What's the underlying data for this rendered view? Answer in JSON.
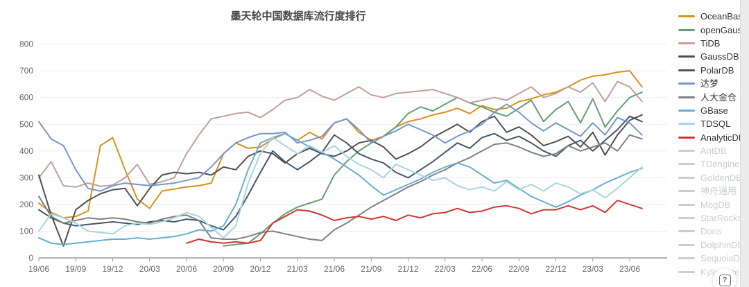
{
  "chart_data": {
    "type": "line",
    "title": "墨天轮中国数据库流行度排行",
    "xlabel": "",
    "ylabel": "",
    "ylim": [
      0,
      800
    ],
    "y_ticks": [
      0,
      100,
      200,
      300,
      400,
      500,
      600,
      700,
      800
    ],
    "grid": true,
    "legend_position": "right",
    "x": [
      "19/06",
      "19/07",
      "19/08",
      "19/09",
      "19/10",
      "19/11",
      "19/12",
      "20/01",
      "20/02",
      "20/03",
      "20/04",
      "20/05",
      "20/06",
      "20/07",
      "20/08",
      "20/09",
      "20/10",
      "20/11",
      "20/12",
      "21/01",
      "21/02",
      "21/03",
      "21/04",
      "21/05",
      "21/06",
      "21/07",
      "21/08",
      "21/09",
      "21/10",
      "21/11",
      "21/12",
      "22/01",
      "22/02",
      "22/03",
      "22/04",
      "22/05",
      "22/06",
      "22/07",
      "22/08",
      "22/09",
      "22/10",
      "22/11",
      "22/12",
      "23/01",
      "23/02",
      "23/03",
      "23/04",
      "23/05",
      "23/06",
      "23/07"
    ],
    "x_tick_labels": [
      "19/06",
      "19/09",
      "19/12",
      "20/03",
      "20/06",
      "20/09",
      "20/12",
      "21/03",
      "21/06",
      "21/09",
      "21/12",
      "22/03",
      "22/06",
      "22/09",
      "22/12",
      "23/03",
      "23/06"
    ],
    "series": [
      {
        "name": "OceanBase",
        "color": "#d9901a",
        "start_index": 0,
        "values": [
          205,
          170,
          150,
          155,
          175,
          420,
          450,
          330,
          220,
          185,
          250,
          258,
          265,
          270,
          280,
          390,
          430,
          410,
          415,
          445,
          465,
          440,
          470,
          445,
          505,
          520,
          470,
          440,
          455,
          490,
          510,
          520,
          535,
          545,
          560,
          540,
          570,
          555,
          560,
          585,
          595,
          610,
          620,
          640,
          665,
          680,
          685,
          695,
          700,
          640
        ]
      },
      {
        "name": "openGauss",
        "color": "#629e73",
        "start_index": 15,
        "values": [
          45,
          50,
          55,
          90,
          130,
          165,
          190,
          205,
          220,
          310,
          360,
          400,
          430,
          455,
          490,
          540,
          565,
          550,
          575,
          600,
          580,
          565,
          545,
          530,
          560,
          590,
          510,
          555,
          585,
          505,
          595,
          490,
          550,
          600,
          620
        ]
      },
      {
        "name": "TiDB",
        "color": "#c0a098",
        "start_index": 0,
        "values": [
          300,
          360,
          270,
          265,
          280,
          268,
          272,
          300,
          350,
          275,
          285,
          300,
          390,
          460,
          520,
          530,
          540,
          545,
          525,
          555,
          590,
          600,
          630,
          605,
          590,
          615,
          640,
          610,
          600,
          615,
          620,
          625,
          630,
          615,
          600,
          580,
          590,
          600,
          590,
          615,
          640,
          600,
          615,
          640,
          620,
          655,
          585,
          660,
          640,
          585
        ]
      },
      {
        "name": "GaussDB",
        "color": "#4f4f4f",
        "start_index": 0,
        "values": [
          310,
          160,
          45,
          180,
          215,
          240,
          255,
          260,
          195,
          260,
          310,
          320,
          315,
          320,
          310,
          340,
          330,
          380,
          400,
          390,
          355,
          390,
          410,
          390,
          380,
          400,
          430,
          440,
          415,
          370,
          390,
          415,
          450,
          475,
          500,
          470,
          510,
          530,
          470,
          490,
          460,
          420,
          435,
          455,
          415,
          470,
          385,
          460,
          515,
          535
        ]
      },
      {
        "name": "PolarDB",
        "color": "#43566c",
        "start_index": 0,
        "values": [
          180,
          150,
          130,
          120,
          125,
          130,
          135,
          130,
          125,
          135,
          140,
          135,
          145,
          140,
          120,
          105,
          155,
          235,
          320,
          400,
          360,
          330,
          360,
          395,
          460,
          430,
          390,
          370,
          355,
          320,
          300,
          330,
          360,
          395,
          430,
          410,
          450,
          465,
          440,
          455,
          430,
          400,
          380,
          420,
          440,
          400,
          440,
          480,
          530,
          510
        ]
      },
      {
        "name": "达梦",
        "color": "#7696cb",
        "start_index": 0,
        "values": [
          510,
          445,
          420,
          330,
          260,
          250,
          270,
          280,
          275,
          270,
          275,
          280,
          290,
          300,
          340,
          390,
          430,
          450,
          465,
          465,
          470,
          430,
          440,
          455,
          505,
          520,
          480,
          430,
          455,
          475,
          500,
          480,
          460,
          430,
          455,
          475,
          500,
          545,
          575,
          545,
          505,
          475,
          505,
          480,
          455,
          505,
          460,
          525,
          505,
          460
        ]
      },
      {
        "name": "人大金仓",
        "color": "#808080",
        "start_index": 0,
        "values": [
          230,
          155,
          130,
          140,
          150,
          145,
          150,
          145,
          135,
          130,
          145,
          155,
          160,
          140,
          75,
          70,
          70,
          80,
          95,
          100,
          90,
          80,
          70,
          65,
          105,
          130,
          160,
          190,
          215,
          240,
          265,
          285,
          310,
          330,
          355,
          375,
          400,
          425,
          430,
          415,
          395,
          380,
          390,
          420,
          400,
          415,
          430,
          400,
          460,
          445
        ]
      },
      {
        "name": "GBase",
        "color": "#68aed2",
        "start_index": 0,
        "values": [
          75,
          55,
          50,
          55,
          60,
          65,
          70,
          70,
          75,
          70,
          75,
          80,
          90,
          105,
          100,
          120,
          200,
          330,
          430,
          450,
          465,
          440,
          415,
          395,
          370,
          340,
          310,
          270,
          235,
          255,
          275,
          295,
          320,
          340,
          355,
          340,
          310,
          280,
          290,
          260,
          230,
          210,
          190,
          210,
          235,
          255,
          280,
          300,
          320,
          335
        ]
      },
      {
        "name": "TDSQL",
        "color": "#a6d6df",
        "start_index": 0,
        "values": [
          100,
          165,
          150,
          130,
          100,
          95,
          90,
          120,
          130,
          125,
          135,
          150,
          170,
          155,
          115,
          75,
          120,
          280,
          390,
          450,
          420,
          390,
          420,
          395,
          420,
          380,
          350,
          330,
          300,
          350,
          330,
          310,
          290,
          300,
          270,
          255,
          265,
          250,
          285,
          255,
          275,
          250,
          280,
          265,
          240,
          255,
          225,
          260,
          300,
          340
        ]
      },
      {
        "name": "AnalyticDB",
        "color": "#d5342e",
        "start_index": 12,
        "values": [
          55,
          70,
          60,
          55,
          60,
          55,
          65,
          130,
          155,
          180,
          175,
          160,
          140,
          150,
          155,
          145,
          155,
          140,
          160,
          150,
          165,
          170,
          185,
          170,
          175,
          190,
          195,
          185,
          165,
          180,
          180,
          195,
          180,
          195,
          170,
          215,
          200,
          185
        ]
      }
    ],
    "inactive_series": [
      "AntDB",
      "TDengine",
      "GoldenDB",
      "神舟通用",
      "MogDB",
      "StarRocks",
      "Doris",
      "DolphinDB",
      "SequoiaDB",
      "Kyligence"
    ],
    "inactive_color": "#c9ced4"
  },
  "legend": {
    "items": [
      {
        "label": "OceanBase",
        "color": "#d9901a",
        "active": true
      },
      {
        "label": "openGauss",
        "color": "#629e73",
        "active": true
      },
      {
        "label": "TiDB",
        "color": "#c0a098",
        "active": true
      },
      {
        "label": "GaussDB",
        "color": "#4f4f4f",
        "active": true
      },
      {
        "label": "PolarDB",
        "color": "#43566c",
        "active": true
      },
      {
        "label": "达梦",
        "color": "#7696cb",
        "active": true
      },
      {
        "label": "人大金仓",
        "color": "#808080",
        "active": true
      },
      {
        "label": "GBase",
        "color": "#68aed2",
        "active": true
      },
      {
        "label": "TDSQL",
        "color": "#a6d6df",
        "active": true
      },
      {
        "label": "AnalyticDB",
        "color": "#d5342e",
        "active": true
      },
      {
        "label": "AntDB",
        "color": "#c9ced4",
        "active": false
      },
      {
        "label": "TDengine",
        "color": "#c9ced4",
        "active": false
      },
      {
        "label": "GoldenDB",
        "color": "#c9ced4",
        "active": false
      },
      {
        "label": "神舟通用",
        "color": "#c9ced4",
        "active": false
      },
      {
        "label": "MogDB",
        "color": "#c9ced4",
        "active": false
      },
      {
        "label": "StarRocks",
        "color": "#c9ced4",
        "active": false
      },
      {
        "label": "Doris",
        "color": "#c9ced4",
        "active": false
      },
      {
        "label": "DolphinDB",
        "color": "#c9ced4",
        "active": false
      },
      {
        "label": "SequoiaDB",
        "color": "#c9ced4",
        "active": false
      },
      {
        "label": "Kyligence",
        "color": "#c9ced4",
        "active": false
      }
    ]
  },
  "help_button": {
    "icon": "question-mark-icon",
    "label": "?"
  }
}
